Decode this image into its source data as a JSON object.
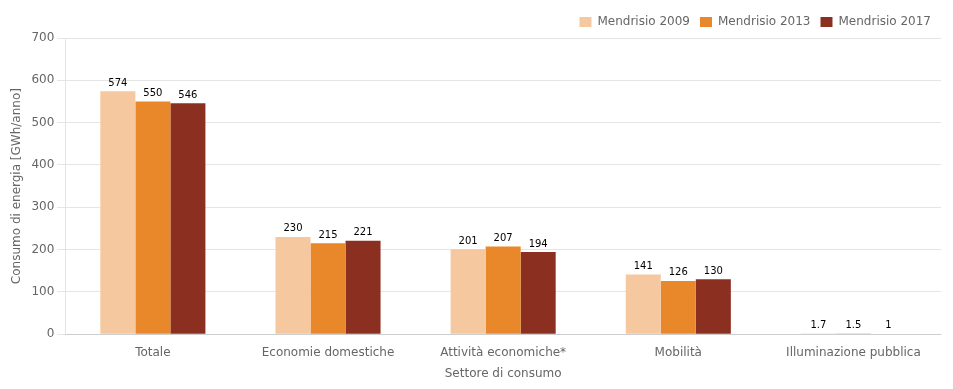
{
  "chart_data": {
    "type": "bar",
    "categories": [
      "Totale",
      "Economie domestiche",
      "Attività economiche*",
      "Mobilità",
      "Illuminazione pubblica"
    ],
    "series": [
      {
        "name": "Mendrisio 2009",
        "color": "#F5C8A0",
        "values": [
          574,
          230,
          201,
          141,
          1.7
        ]
      },
      {
        "name": "Mendrisio 2013",
        "color": "#E8882A",
        "values": [
          550,
          215,
          207,
          126,
          1.5
        ]
      },
      {
        "name": "Mendrisio 2017",
        "color": "#8B3020",
        "values": [
          546,
          221,
          194,
          130,
          1.0
        ]
      }
    ],
    "xlabel": "Settore di consumo",
    "ylabel": "Consumo di energia [GWh/anno]",
    "ylim": [
      0,
      700
    ],
    "yticks": [
      0,
      100,
      200,
      300,
      400,
      500,
      600,
      700
    ],
    "grid": true,
    "legend": "upper right",
    "data_labels": true
  }
}
